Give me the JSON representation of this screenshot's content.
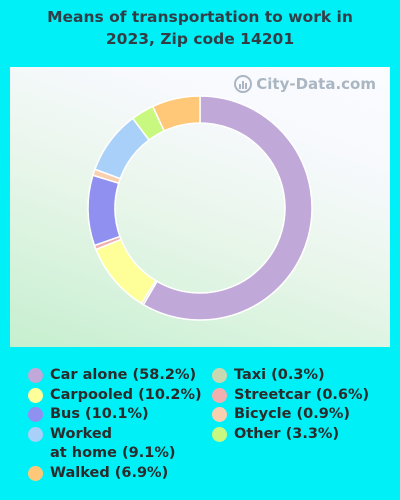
{
  "title_line1": "Means of transportation to work in",
  "title_line2": "2023, Zip code 14201",
  "watermark": "City-Data.com",
  "chart_data": {
    "type": "pie",
    "title": "Means of transportation to work in 2023, Zip code 14201",
    "slices": [
      {
        "label": "Car alone",
        "value": 58.2,
        "color": "#c0a8d8",
        "legend": "Car alone (58.2%)"
      },
      {
        "label": "Taxi",
        "value": 0.3,
        "color": "#c8d8b0",
        "legend": "Taxi (0.3%)"
      },
      {
        "label": "Carpooled",
        "value": 10.2,
        "color": "#ffff99",
        "legend": "Carpooled (10.2%)"
      },
      {
        "label": "Streetcar",
        "value": 0.6,
        "color": "#f0b0b0",
        "legend": "Streetcar (0.6%)"
      },
      {
        "label": "Bus",
        "value": 10.1,
        "color": "#9090f0",
        "legend": "Bus (10.1%)"
      },
      {
        "label": "Bicycle",
        "value": 0.9,
        "color": "#f8d0b0",
        "legend": "Bicycle (0.9%)"
      },
      {
        "label": "Worked at home",
        "value": 9.1,
        "color": "#a8d0f8",
        "legend": "Worked at home (9.1%)"
      },
      {
        "label": "Other",
        "value": 3.3,
        "color": "#c8f880",
        "legend": "Other (3.3%)"
      },
      {
        "label": "Walked",
        "value": 6.9,
        "color": "#ffc878",
        "legend": "Walked (6.9%)"
      }
    ]
  },
  "legend_col1": [
    {
      "line1": "Car alone (58.2%)",
      "line2": "",
      "color": "#c0a8d8"
    },
    {
      "line1": "Carpooled (10.2%)",
      "line2": "",
      "color": "#ffff99"
    },
    {
      "line1": "Bus (10.1%)",
      "line2": "",
      "color": "#9090f0"
    },
    {
      "line1": "Worked",
      "line2": "at home (9.1%)",
      "color": "#a8d0f8"
    },
    {
      "line1": "Walked (6.9%)",
      "line2": "",
      "color": "#ffc878"
    }
  ],
  "legend_col2": [
    {
      "line1": "Taxi (0.3%)",
      "line2": "",
      "color": "#c8d8b0"
    },
    {
      "line1": "Streetcar (0.6%)",
      "line2": "",
      "color": "#f0b0b0"
    },
    {
      "line1": "Bicycle (0.9%)",
      "line2": "",
      "color": "#f8d0b0"
    },
    {
      "line1": "Other (3.3%)",
      "line2": "",
      "color": "#c8f880"
    }
  ]
}
